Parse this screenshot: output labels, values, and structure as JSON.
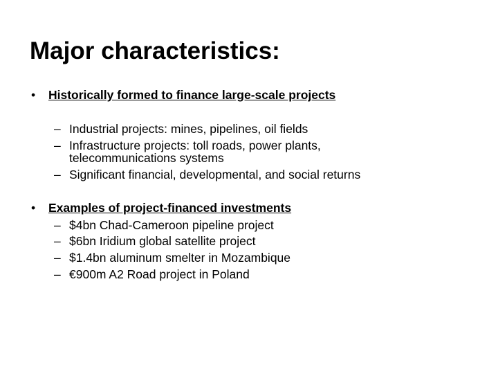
{
  "slide": {
    "title": "Major characteristics:",
    "sections": [
      {
        "heading": "Historically formed to finance large-scale projects",
        "items": [
          "Industrial projects: mines, pipelines, oil fields",
          "Infrastructure projects: toll roads, power plants, telecommunications systems",
          "Significant financial, developmental, and social returns"
        ]
      },
      {
        "heading": "Examples of project-financed investments",
        "items": [
          "$4bn Chad-Cameroon pipeline project",
          "$6bn Iridium global satellite project",
          "$1.4bn aluminum smelter in Mozambique",
          "€900m A2 Road project in Poland"
        ]
      }
    ],
    "bullet_glyph": "•",
    "dash_glyph": "–"
  }
}
